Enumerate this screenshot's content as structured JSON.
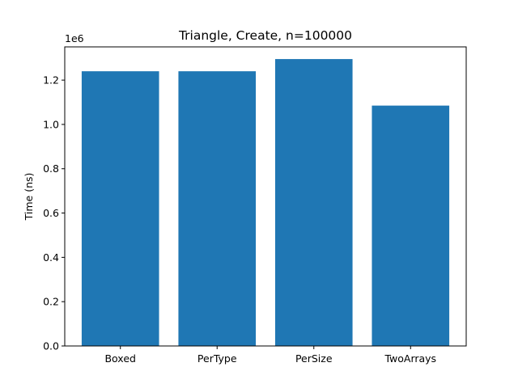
{
  "chart_data": {
    "type": "bar",
    "title": "Triangle, Create, n=100000",
    "xlabel": "",
    "ylabel": "Time (ns)",
    "y_scale_label": "1e6",
    "categories": [
      "Boxed",
      "PerType",
      "PerSize",
      "TwoArrays"
    ],
    "values": [
      1240000,
      1240000,
      1295000,
      1085000
    ],
    "ylim": [
      0,
      1350000
    ],
    "yticks": [
      0,
      200000,
      400000,
      600000,
      800000,
      1000000,
      1200000
    ],
    "ytick_labels": [
      "0.0",
      "0.2",
      "0.4",
      "0.6",
      "0.8",
      "1.0",
      "1.2"
    ],
    "bar_color": "#1f77b4",
    "grid": false,
    "legend": "none"
  }
}
